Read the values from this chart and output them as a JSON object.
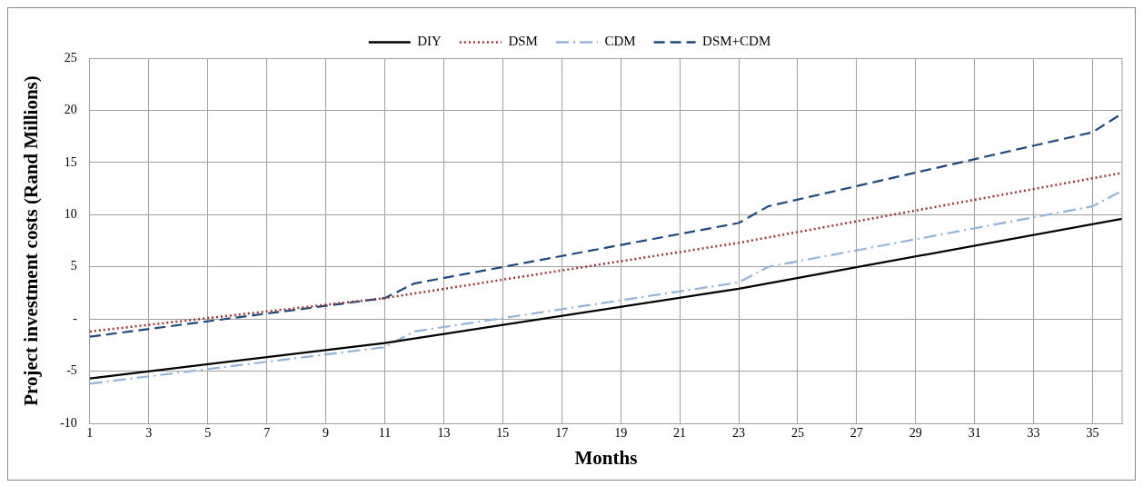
{
  "chart_data": {
    "type": "line",
    "xlabel": "Months",
    "ylabel": "Project investment costs (Rand Millions)",
    "xlim": [
      1,
      36
    ],
    "xticks": [
      1,
      3,
      5,
      7,
      9,
      11,
      13,
      15,
      17,
      19,
      21,
      23,
      25,
      27,
      29,
      31,
      33,
      35
    ],
    "ylim": [
      -10,
      25
    ],
    "yticks": [
      -10,
      -5,
      {
        "value": 0,
        "label": "-"
      },
      5,
      10,
      15,
      20,
      25
    ],
    "grid": true,
    "legend": "top",
    "marker": "none",
    "series": [
      {
        "name": "DIY",
        "color": "#000000",
        "line_style": "solid",
        "x": [
          1,
          11,
          23,
          36
        ],
        "values": [
          -5.7,
          -2.3,
          2.9,
          9.6
        ]
      },
      {
        "name": "DSM",
        "color": "#953735",
        "line_style": "dotted",
        "x": [
          1,
          11,
          23,
          36
        ],
        "values": [
          -1.2,
          2.0,
          7.3,
          14.0
        ]
      },
      {
        "name": "CDM",
        "color": "#95b3d7",
        "line_style": "dashdot",
        "x": [
          1,
          11,
          12,
          23,
          24,
          35,
          36
        ],
        "values": [
          -6.2,
          -2.7,
          -1.2,
          3.5,
          5.0,
          10.8,
          12.3
        ]
      },
      {
        "name": "DSM+CDM",
        "color": "#1f497d",
        "line_style": "dashed",
        "x": [
          1,
          11,
          12,
          23,
          24,
          35,
          36
        ],
        "values": [
          -1.7,
          2.0,
          3.4,
          9.2,
          10.8,
          17.9,
          19.7
        ]
      }
    ]
  }
}
